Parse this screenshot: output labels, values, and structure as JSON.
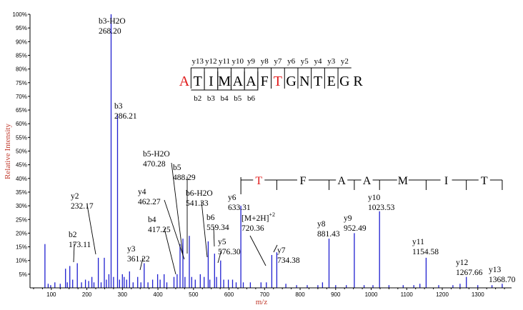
{
  "chart_data": {
    "type": "bar",
    "title": "",
    "xlabel": "m/z",
    "ylabel": "Relative Intensity",
    "xlim": [
      40,
      1395
    ],
    "ylim": [
      0,
      100
    ],
    "x_ticks": [
      100,
      200,
      300,
      400,
      500,
      600,
      700,
      800,
      900,
      1000,
      1100,
      1200,
      1300
    ],
    "y_ticks": [
      "5%",
      "10%",
      "15%",
      "20%",
      "25%",
      "30%",
      "35%",
      "40%",
      "45%",
      "50%",
      "55%",
      "60%",
      "65%",
      "70%",
      "75%",
      "80%",
      "85%",
      "90%",
      "95%",
      "100%"
    ],
    "colors": {
      "peaks": "#1f1fd0",
      "modified_residue": "#e01b1b",
      "residue": "#000000",
      "axis_title": "#c0392b"
    },
    "peaks": [
      {
        "mz": 82,
        "rel": 16
      },
      {
        "mz": 91,
        "rel": 1.5
      },
      {
        "mz": 98,
        "rel": 1
      },
      {
        "mz": 110,
        "rel": 2
      },
      {
        "mz": 125,
        "rel": 1.5
      },
      {
        "mz": 140,
        "rel": 7
      },
      {
        "mz": 145,
        "rel": 2
      },
      {
        "mz": 152,
        "rel": 8
      },
      {
        "mz": 160,
        "rel": 3
      },
      {
        "mz": 173.11,
        "rel": 9
      },
      {
        "mz": 185,
        "rel": 2
      },
      {
        "mz": 196,
        "rel": 3
      },
      {
        "mz": 205,
        "rel": 2.5
      },
      {
        "mz": 214,
        "rel": 4
      },
      {
        "mz": 220,
        "rel": 2
      },
      {
        "mz": 232.17,
        "rel": 11
      },
      {
        "mz": 240,
        "rel": 2
      },
      {
        "mz": 249,
        "rel": 11
      },
      {
        "mz": 255,
        "rel": 3
      },
      {
        "mz": 262,
        "rel": 5
      },
      {
        "mz": 268.2,
        "rel": 100
      },
      {
        "mz": 275,
        "rel": 4
      },
      {
        "mz": 286.21,
        "rel": 63.5
      },
      {
        "mz": 292,
        "rel": 3
      },
      {
        "mz": 300,
        "rel": 5
      },
      {
        "mz": 305,
        "rel": 4
      },
      {
        "mz": 312,
        "rel": 3
      },
      {
        "mz": 320,
        "rel": 6
      },
      {
        "mz": 330,
        "rel": 2
      },
      {
        "mz": 343,
        "rel": 4
      },
      {
        "mz": 352,
        "rel": 2
      },
      {
        "mz": 361.22,
        "rel": 9
      },
      {
        "mz": 372,
        "rel": 2
      },
      {
        "mz": 385,
        "rel": 3
      },
      {
        "mz": 399,
        "rel": 5
      },
      {
        "mz": 406,
        "rel": 3
      },
      {
        "mz": 417.25,
        "rel": 5
      },
      {
        "mz": 425,
        "rel": 2
      },
      {
        "mz": 445,
        "rel": 4
      },
      {
        "mz": 454,
        "rel": 5
      },
      {
        "mz": 462.27,
        "rel": 16
      },
      {
        "mz": 470.28,
        "rel": 18
      },
      {
        "mz": 476,
        "rel": 4
      },
      {
        "mz": 488.29,
        "rel": 19
      },
      {
        "mz": 495,
        "rel": 4
      },
      {
        "mz": 505,
        "rel": 3
      },
      {
        "mz": 519,
        "rel": 5
      },
      {
        "mz": 530,
        "rel": 4
      },
      {
        "mz": 541.33,
        "rel": 17
      },
      {
        "mz": 546,
        "rel": 3
      },
      {
        "mz": 559.34,
        "rel": 12.5
      },
      {
        "mz": 565,
        "rel": 4
      },
      {
        "mz": 576.3,
        "rel": 10
      },
      {
        "mz": 585,
        "rel": 3
      },
      {
        "mz": 598,
        "rel": 3
      },
      {
        "mz": 610,
        "rel": 3
      },
      {
        "mz": 620,
        "rel": 2
      },
      {
        "mz": 633.31,
        "rel": 30
      },
      {
        "mz": 640,
        "rel": 2
      },
      {
        "mz": 660,
        "rel": 2
      },
      {
        "mz": 690,
        "rel": 2
      },
      {
        "mz": 705,
        "rel": 2
      },
      {
        "mz": 720.36,
        "rel": 12
      },
      {
        "mz": 734.38,
        "rel": 13
      },
      {
        "mz": 760,
        "rel": 1.5
      },
      {
        "mz": 790,
        "rel": 1
      },
      {
        "mz": 820,
        "rel": 1
      },
      {
        "mz": 850,
        "rel": 1
      },
      {
        "mz": 863,
        "rel": 2
      },
      {
        "mz": 881.43,
        "rel": 18
      },
      {
        "mz": 900,
        "rel": 1
      },
      {
        "mz": 930,
        "rel": 1
      },
      {
        "mz": 952.49,
        "rel": 20
      },
      {
        "mz": 980,
        "rel": 1
      },
      {
        "mz": 1005,
        "rel": 1
      },
      {
        "mz": 1023.53,
        "rel": 28
      },
      {
        "mz": 1050,
        "rel": 1
      },
      {
        "mz": 1090,
        "rel": 1
      },
      {
        "mz": 1120,
        "rel": 1
      },
      {
        "mz": 1137,
        "rel": 1.5
      },
      {
        "mz": 1154.58,
        "rel": 11
      },
      {
        "mz": 1190,
        "rel": 1
      },
      {
        "mz": 1230,
        "rel": 1
      },
      {
        "mz": 1250,
        "rel": 1.5
      },
      {
        "mz": 1267.66,
        "rel": 4
      },
      {
        "mz": 1300,
        "rel": 1
      },
      {
        "mz": 1340,
        "rel": 1
      },
      {
        "mz": 1368.7,
        "rel": 1.5
      }
    ],
    "annotations": [
      {
        "name": "b2",
        "ion": "b2",
        "mz": "173.11",
        "x": 173.11
      },
      {
        "name": "y2",
        "ion": "y2",
        "mz": "232.17",
        "x": 232.17
      },
      {
        "name": "b3-h2o",
        "ion": "b3-H2O",
        "mz": "268.20",
        "x": 268.2
      },
      {
        "name": "b3",
        "ion": "b3",
        "mz": "286.21",
        "x": 286.21
      },
      {
        "name": "y3",
        "ion": "y3",
        "mz": "361.22",
        "x": 361.22
      },
      {
        "name": "b4",
        "ion": "b4",
        "mz": "417.25",
        "x": 417.25
      },
      {
        "name": "y4",
        "ion": "y4",
        "mz": "462.27",
        "x": 462.27
      },
      {
        "name": "b5-h2o",
        "ion": "b5-H2O",
        "mz": "470.28",
        "x": 470.28
      },
      {
        "name": "b5",
        "ion": "b5",
        "mz": "488.29",
        "x": 488.29
      },
      {
        "name": "b6-h2o",
        "ion": "b6-H2O",
        "mz": "541.33",
        "x": 541.33
      },
      {
        "name": "b6",
        "ion": "b6",
        "mz": "559.34",
        "x": 559.34
      },
      {
        "name": "y5",
        "ion": "y5",
        "mz": "576.30",
        "x": 576.3
      },
      {
        "name": "y6",
        "ion": "y6",
        "mz": "633.31",
        "x": 633.31
      },
      {
        "name": "precursor",
        "ion": "[M+2H]",
        "charge": "+2",
        "mz": "720.36",
        "x": 720.36
      },
      {
        "name": "y7",
        "ion": "y7",
        "mz": "734.38",
        "x": 734.38
      },
      {
        "name": "y8",
        "ion": "y8",
        "mz": "881.43",
        "x": 881.43
      },
      {
        "name": "y9",
        "ion": "y9",
        "mz": "952.49",
        "x": 952.49
      },
      {
        "name": "y10",
        "ion": "y10",
        "mz": "1023.53",
        "x": 1023.53
      },
      {
        "name": "y11",
        "ion": "y11",
        "mz": "1154.58",
        "x": 1154.58
      },
      {
        "name": "y12",
        "ion": "y12",
        "mz": "1267.66",
        "x": 1267.66
      },
      {
        "name": "y13",
        "ion": "y13",
        "mz": "1368.70",
        "x": 1368.7
      }
    ],
    "sequence": {
      "residues": [
        {
          "aa": "A",
          "modified": true
        },
        {
          "aa": "T",
          "modified": false
        },
        {
          "aa": "I",
          "modified": false
        },
        {
          "aa": "M",
          "modified": false
        },
        {
          "aa": "A",
          "modified": false
        },
        {
          "aa": "A",
          "modified": false
        },
        {
          "aa": "F",
          "modified": false
        },
        {
          "aa": "T",
          "modified": true
        },
        {
          "aa": "G",
          "modified": false
        },
        {
          "aa": "N",
          "modified": false
        },
        {
          "aa": "T",
          "modified": false
        },
        {
          "aa": "E",
          "modified": false
        },
        {
          "aa": "G",
          "modified": false
        },
        {
          "aa": "R",
          "modified": false
        }
      ],
      "y_ions": [
        "y13",
        "y12",
        "y11",
        "y10",
        "y9",
        "y8",
        "y7",
        "y6",
        "y5",
        "y4",
        "y3",
        "y2"
      ],
      "b_ions": [
        "b2",
        "b3",
        "b4",
        "b5",
        "b6"
      ]
    },
    "ladder": [
      {
        "aa": "T",
        "modified": true,
        "ion": "y7"
      },
      {
        "aa": "F",
        "modified": false,
        "ion": "y8"
      },
      {
        "aa": "A",
        "modified": false,
        "ion": "y9"
      },
      {
        "aa": "A",
        "modified": false,
        "ion": "y10"
      },
      {
        "aa": "M",
        "modified": false,
        "ion": "y11"
      },
      {
        "aa": "I",
        "modified": false,
        "ion": "y12"
      },
      {
        "aa": "T",
        "modified": false,
        "ion": "y13"
      }
    ]
  }
}
